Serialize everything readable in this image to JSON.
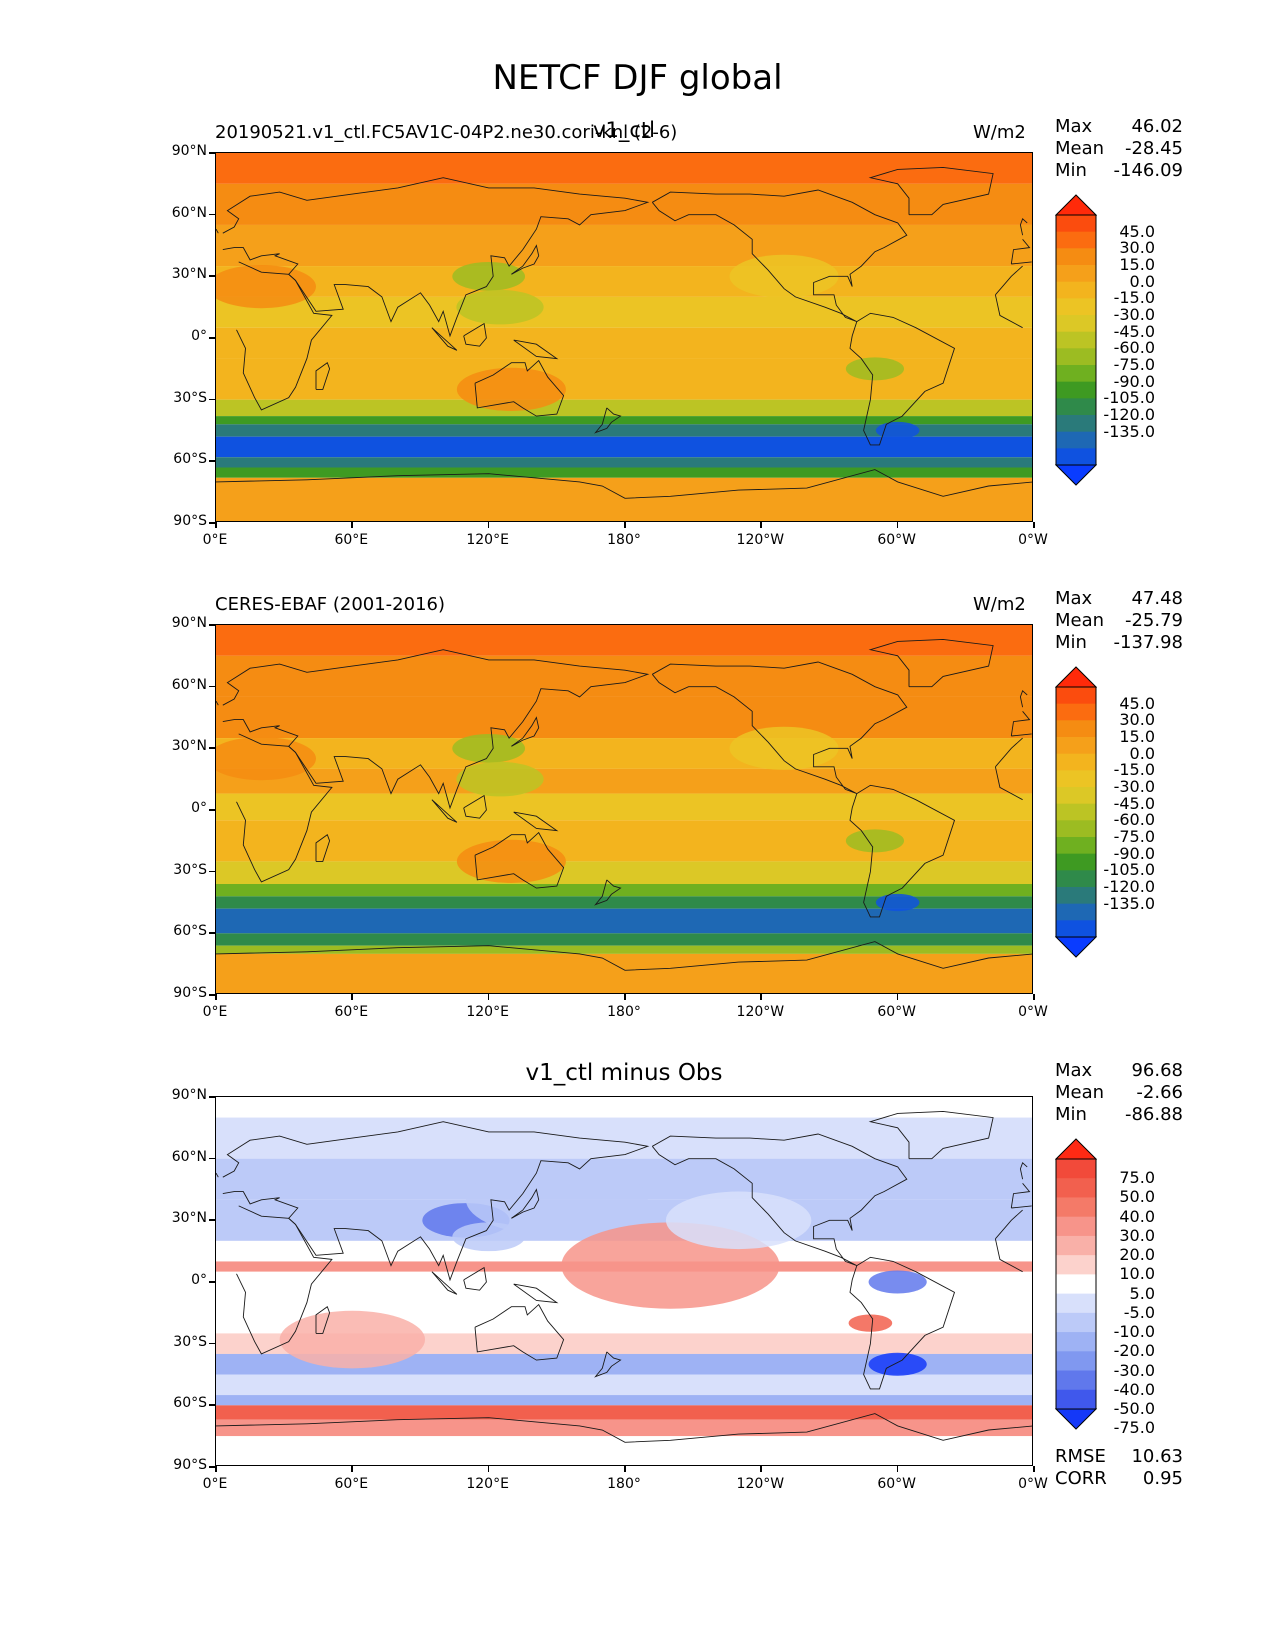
{
  "figure": {
    "title": "NETCF DJF global"
  },
  "axis_ticks": {
    "lat": [
      "90°N",
      "60°N",
      "30°N",
      "0°",
      "30°S",
      "60°S",
      "90°S"
    ],
    "lon": [
      "0°E",
      "60°E",
      "120°E",
      "180°",
      "120°W",
      "60°W",
      "0°W"
    ]
  },
  "panels": [
    {
      "left_title": "20190521.v1_ctl.FC5AV1C-04P2.ne30.cori-knl (2-6)",
      "center_title": "v1_ctl",
      "units": "W/m2",
      "stats": {
        "max_label": "Max",
        "max": "46.02",
        "mean_label": "Mean",
        "mean": "-28.45",
        "min_label": "Min",
        "min": "-146.09"
      },
      "colorbar_labels": [
        "45.0",
        "30.0",
        "15.0",
        "0.0",
        "-15.0",
        "-30.0",
        "-45.0",
        "-60.0",
        "-75.0",
        "-90.0",
        "-105.0",
        "-120.0",
        "-135.0"
      ],
      "colorbar_colors": [
        "#ff2a0a",
        "#fb4c0e",
        "#fb6c10",
        "#f58c12",
        "#f5a01a",
        "#f3b41e",
        "#ecc424",
        "#dcc826",
        "#bcc424",
        "#9cbc22",
        "#6fb020",
        "#3e9a22",
        "#2f8a4a",
        "#2a7a7a",
        "#1e68b4",
        "#0f52e0",
        "#0a3cff"
      ]
    },
    {
      "left_title": "CERES-EBAF (2001-2016)",
      "center_title": "",
      "units": "W/m2",
      "stats": {
        "max_label": "Max",
        "max": "47.48",
        "mean_label": "Mean",
        "mean": "-25.79",
        "min_label": "Min",
        "min": "-137.98"
      },
      "colorbar_labels": [
        "45.0",
        "30.0",
        "15.0",
        "0.0",
        "-15.0",
        "-30.0",
        "-45.0",
        "-60.0",
        "-75.0",
        "-90.0",
        "-105.0",
        "-120.0",
        "-135.0"
      ],
      "colorbar_colors": [
        "#ff2a0a",
        "#fb4c0e",
        "#fb6c10",
        "#f58c12",
        "#f5a01a",
        "#f3b41e",
        "#ecc424",
        "#dcc826",
        "#bcc424",
        "#9cbc22",
        "#6fb020",
        "#3e9a22",
        "#2f8a4a",
        "#2a7a7a",
        "#1e68b4",
        "#0f52e0",
        "#0a3cff"
      ]
    },
    {
      "left_title": "",
      "center_title": "v1_ctl minus Obs",
      "units": "",
      "stats": {
        "max_label": "Max",
        "max": "96.68",
        "mean_label": "Mean",
        "mean": "-2.66",
        "min_label": "Min",
        "min": "-86.88"
      },
      "colorbar_labels": [
        "75.0",
        "50.0",
        "40.0",
        "30.0",
        "20.0",
        "10.0",
        "5.0",
        "-5.0",
        "-10.0",
        "-20.0",
        "-30.0",
        "-40.0",
        "-50.0",
        "-75.0"
      ],
      "colorbar_colors": [
        "#ff2a14",
        "#f24a3a",
        "#f2604e",
        "#f47a68",
        "#f7948a",
        "#f9b0a8",
        "#fcd2cc",
        "#ffffff",
        "#d8e0fb",
        "#bccaf8",
        "#9eb2f4",
        "#8098f0",
        "#6078ec",
        "#4058ec",
        "#1438f8"
      ],
      "metrics": {
        "rmse_label": "RMSE",
        "rmse": "10.63",
        "corr_label": "CORR",
        "corr": "0.95"
      }
    }
  ],
  "colors": {
    "coastline": "#1a1a1a"
  }
}
